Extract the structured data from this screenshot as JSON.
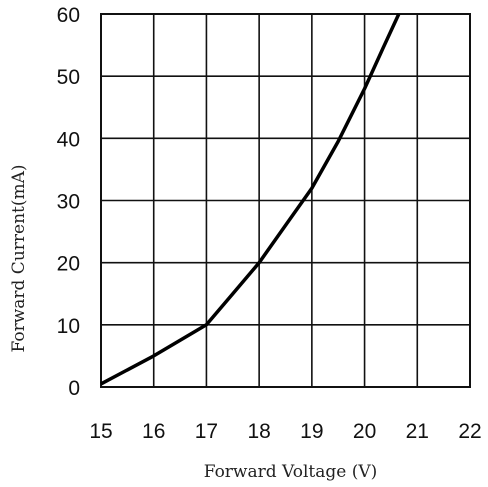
{
  "chart_data": {
    "type": "line",
    "title": "",
    "xlabel": "Forward Voltage (V)",
    "ylabel": "Forward Current(mA)",
    "xlim": [
      15,
      22
    ],
    "ylim": [
      0,
      60
    ],
    "xticks": [
      "15",
      "16",
      "17",
      "18",
      "19",
      "20",
      "21",
      "22"
    ],
    "yticks": [
      "0",
      "10",
      "20",
      "30",
      "40",
      "50",
      "60"
    ],
    "grid": true,
    "series": [
      {
        "x": [
          15,
          16,
          17,
          17.5,
          18,
          18.5,
          19,
          19.5,
          20,
          20.35,
          20.65
        ],
        "y": [
          0.5,
          5,
          10,
          15,
          20,
          26,
          32,
          39.5,
          48,
          54.5,
          60
        ],
        "color": "#000000"
      }
    ]
  }
}
